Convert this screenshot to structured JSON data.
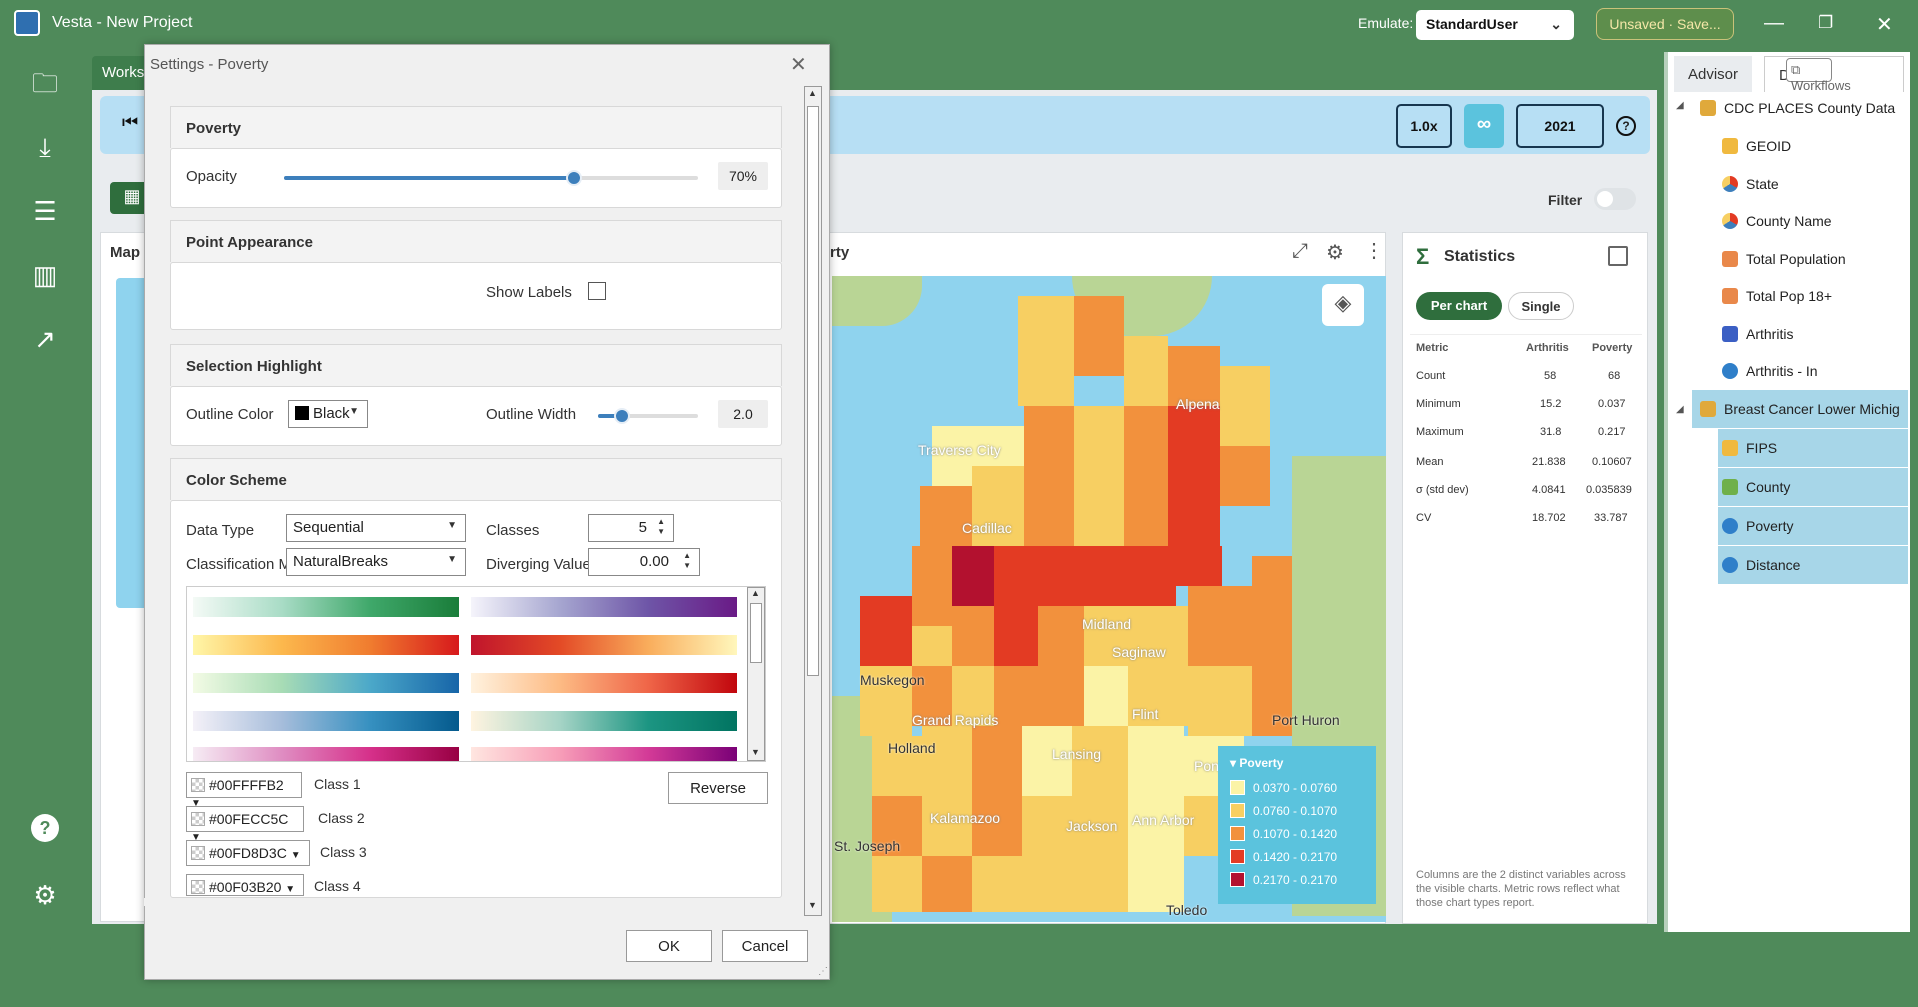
{
  "app": {
    "title": "Vesta - New Project"
  },
  "header": {
    "emulate_label": "Emulate:",
    "emulate_value": "StandardUser",
    "unsaved_label": "Unsaved · Save..."
  },
  "workspace_tab": "Works",
  "timebar": {
    "speed": "1.0x",
    "loop": "∞",
    "year": "2021"
  },
  "filter_label": "Filter",
  "map": {
    "partial_title": "rty",
    "left_label": "Map",
    "city_labels": [
      "Traverse City",
      "Cadillac",
      "Alpena",
      "Midland",
      "Saginaw",
      "Muskegon",
      "Grand Rapids",
      "Flint",
      "Port Huron",
      "Holland",
      "Lansing",
      "Pon",
      "Kalamazoo",
      "Jackson",
      "Ann Arbor",
      "St. Joseph",
      "Toledo"
    ],
    "legend": {
      "title": "Poverty",
      "items": [
        {
          "label": "0.0370 - 0.0760",
          "color": "#fbf3a6"
        },
        {
          "label": "0.0760 - 0.1070",
          "color": "#f7cf62"
        },
        {
          "label": "0.1070 - 0.1420",
          "color": "#f2913d"
        },
        {
          "label": "0.1420 - 0.2170",
          "color": "#e33b23"
        },
        {
          "label": "0.2170 - 0.2170",
          "color": "#b3112f"
        }
      ]
    }
  },
  "statistics": {
    "title": "Statistics",
    "mode_per_chart": "Per chart",
    "mode_single": "Single",
    "columns": [
      "Metric",
      "Arthritis",
      "Poverty"
    ],
    "rows": [
      [
        "Count",
        "58",
        "68"
      ],
      [
        "Minimum",
        "15.2",
        "0.037"
      ],
      [
        "Maximum",
        "31.8",
        "0.217"
      ],
      [
        "Mean",
        "21.838",
        "0.10607"
      ],
      [
        "σ (std dev)",
        "4.0841",
        "0.035839"
      ],
      [
        "CV",
        "18.702",
        "33.787"
      ]
    ],
    "note": "Columns are the 2 distinct variables across the visible charts. Metric rows reflect what those chart types report."
  },
  "right_panel": {
    "tabs": [
      "Advisor",
      "Data",
      "Workflows"
    ],
    "tree": [
      {
        "label": "CDC PLACES County Data",
        "type": "dataset"
      },
      {
        "label": "GEOID",
        "type": "id"
      },
      {
        "label": "State",
        "type": "category"
      },
      {
        "label": "County Name",
        "type": "category"
      },
      {
        "label": "Total Population",
        "type": "numeric"
      },
      {
        "label": "Total Pop 18+",
        "type": "numeric"
      },
      {
        "label": "Arthritis",
        "type": "scatter"
      },
      {
        "label": "Arthritis - In",
        "type": "number"
      },
      {
        "label": "Breast Cancer Lower Michig",
        "type": "dataset"
      },
      {
        "label": "FIPS",
        "type": "id"
      },
      {
        "label": "County",
        "type": "text"
      },
      {
        "label": "Poverty",
        "type": "number"
      },
      {
        "label": "Distance",
        "type": "number"
      }
    ]
  },
  "dialog": {
    "title": "Settings - Poverty",
    "poverty_section": "Poverty",
    "opacity_label": "Opacity",
    "opacity_value": "70%",
    "opacity_fraction": 0.7,
    "point_section": "Point Appearance",
    "show_labels": "Show Labels",
    "selection_section": "Selection Highlight",
    "outline_color_label": "Outline Color",
    "outline_color_value": "Black",
    "outline_width_label": "Outline Width",
    "outline_width_value": "2.0",
    "color_section": "Color Scheme",
    "data_type_label": "Data Type",
    "data_type_value": "Sequential",
    "classes_label": "Classes",
    "classes_value": "5",
    "classification_label": "Classification M",
    "classification_value": "NaturalBreaks",
    "diverging_label": "Diverging Value",
    "diverging_value": "0.00",
    "reverse_button": "Reverse",
    "classes": [
      {
        "hex": "#00FFFFB2",
        "label": "Class 1"
      },
      {
        "hex": "#00FECC5C",
        "label": "Class 2"
      },
      {
        "hex": "#00FD8D3C",
        "label": "Class 3"
      },
      {
        "hex": "#00F03B20",
        "label": "Class 4"
      }
    ],
    "ok_button": "OK",
    "cancel_button": "Cancel"
  }
}
